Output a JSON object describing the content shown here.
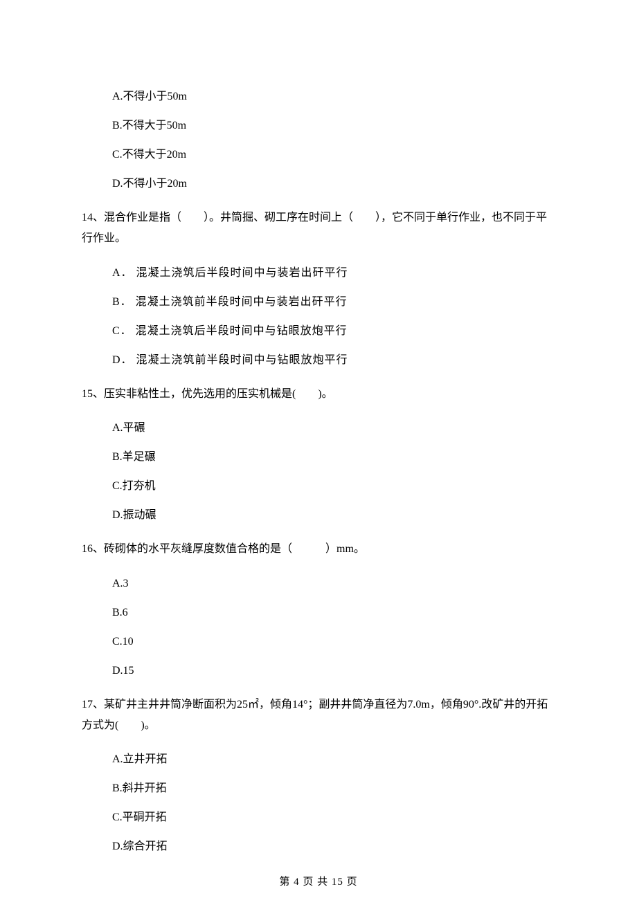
{
  "q13_options": {
    "a": "A.不得小于50m",
    "b": "B.不得大于50m",
    "c": "C.不得大于20m",
    "d": "D.不得小于20m"
  },
  "q14": {
    "stem": "14、混合作业是指（　　）。井筒掘、砌工序在时间上（　　），它不同于单行作业，也不同于平行作业。",
    "a": "A．  混凝土浇筑后半段时间中与装岩出矸平行",
    "b": "B．  混凝土浇筑前半段时间中与装岩出矸平行",
    "c": "C．  混凝土浇筑后半段时间中与钻眼放炮平行",
    "d": "D．  混凝土浇筑前半段时间中与钻眼放炮平行"
  },
  "q15": {
    "stem": "15、压实非粘性土，优先选用的压实机械是(　　)。",
    "a": "A.平碾",
    "b": "B.羊足碾",
    "c": "C.打夯机",
    "d": "D.振动碾"
  },
  "q16": {
    "stem": "16、砖砌体的水平灰缝厚度数值合格的是（　　　）mm。",
    "a": "A.3",
    "b": "B.6",
    "c": "C.10",
    "d": "D.15"
  },
  "q17": {
    "stem": "17、某矿井主井井筒净断面积为25㎡，倾角14°；副井井筒净直径为7.0m，倾角90°.改矿井的开拓方式为(　　)。",
    "a": "A.立井开拓",
    "b": "B.斜井开拓",
    "c": "C.平硐开拓",
    "d": "D.综合开拓"
  },
  "footer": "第 4 页 共 15 页"
}
